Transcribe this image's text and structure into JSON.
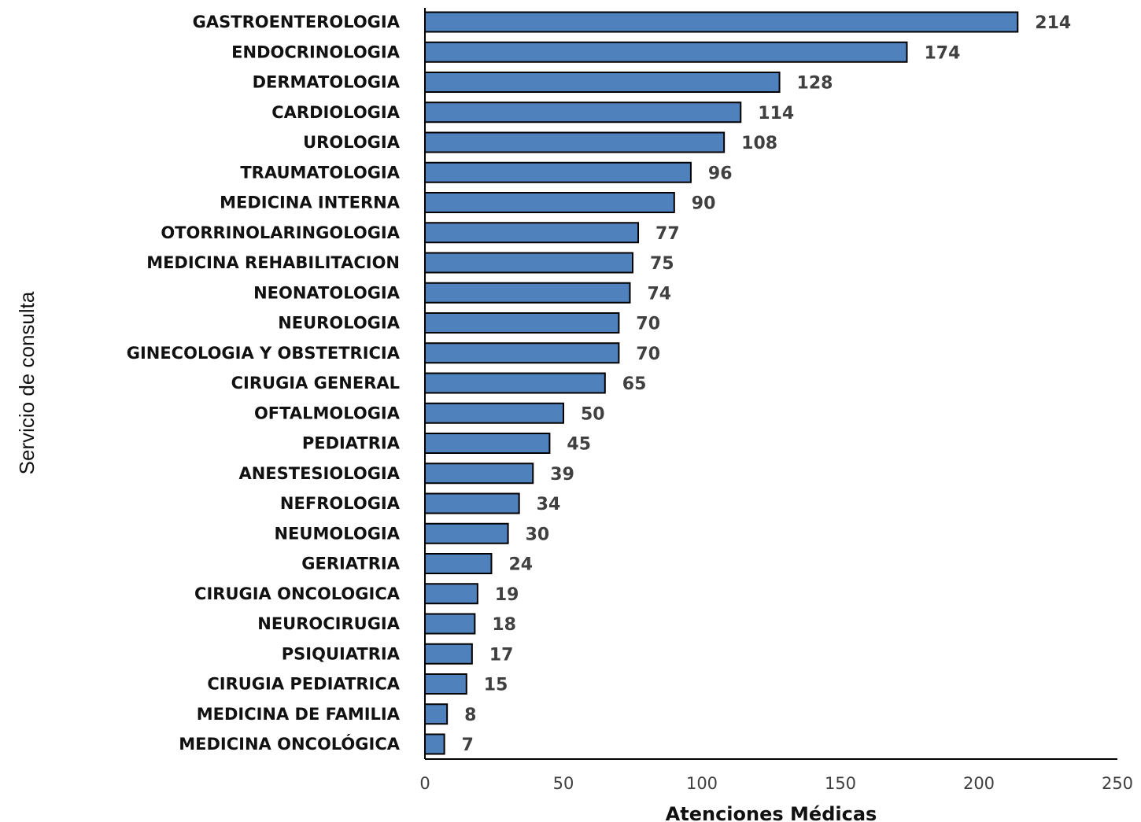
{
  "chart_data": {
    "type": "bar",
    "orientation": "horizontal",
    "categories": [
      "GASTROENTEROLOGIA",
      "ENDOCRINOLOGIA",
      "DERMATOLOGIA",
      "CARDIOLOGIA",
      "UROLOGIA",
      "TRAUMATOLOGIA",
      "MEDICINA INTERNA",
      "OTORRINOLARINGOLOGIA",
      "MEDICINA REHABILITACION",
      "NEONATOLOGIA",
      "NEUROLOGIA",
      "GINECOLOGIA Y OBSTETRICIA",
      "CIRUGIA GENERAL",
      "OFTALMOLOGIA",
      "PEDIATRIA",
      "ANESTESIOLOGIA",
      "NEFROLOGIA",
      "NEUMOLOGIA",
      "GERIATRIA",
      "CIRUGIA ONCOLOGICA",
      "NEUROCIRUGIA",
      "PSIQUIATRIA",
      "CIRUGIA PEDIATRICA",
      "MEDICINA DE FAMILIA",
      "MEDICINA ONCOLÓGICA"
    ],
    "values": [
      214,
      174,
      128,
      114,
      108,
      96,
      90,
      77,
      75,
      74,
      70,
      70,
      65,
      50,
      45,
      39,
      34,
      30,
      24,
      19,
      18,
      17,
      15,
      8,
      7
    ],
    "xlabel": "Atenciones Médicas",
    "ylabel": "Servicio de consulta",
    "xlim": [
      0,
      250
    ],
    "xticks": [
      "0",
      "50",
      "100",
      "150",
      "200",
      "250"
    ],
    "grid": false,
    "legend": "none",
    "bar_color": "#4f81bd",
    "bar_edge_color": "#000000"
  }
}
